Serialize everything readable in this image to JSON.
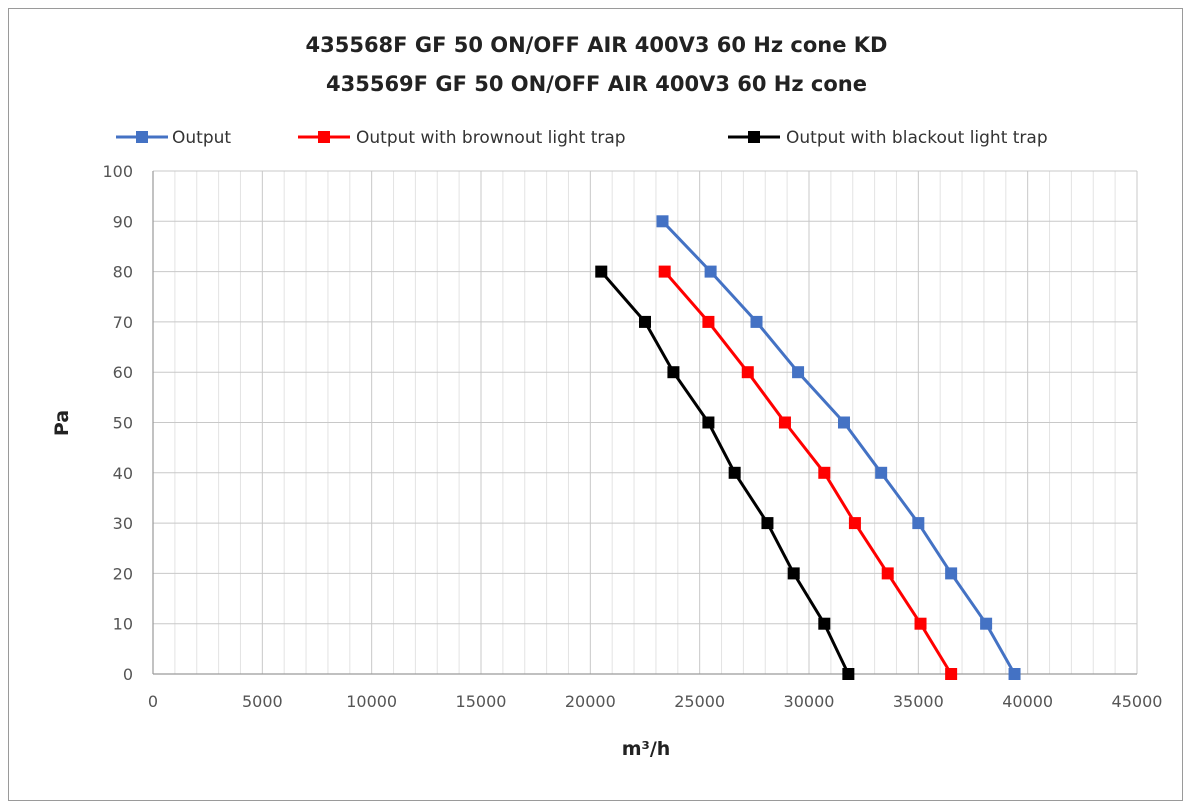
{
  "chart_data": {
    "type": "line",
    "title": "435568F GF 50 ON/OFF AIR 400V3 60 Hz cone KD",
    "subtitle": "435569F GF 50 ON/OFF AIR 400V3 60 Hz cone",
    "xlabel": "m³/h",
    "ylabel": "Pa",
    "xlim": [
      0,
      45000
    ],
    "ylim": [
      0,
      100
    ],
    "x_ticks": [
      "0",
      "5000",
      "10000",
      "15000",
      "20000",
      "25000",
      "30000",
      "35000",
      "40000",
      "45000"
    ],
    "y_ticks": [
      "0",
      "10",
      "20",
      "30",
      "40",
      "50",
      "60",
      "70",
      "80",
      "90",
      "100"
    ],
    "grid": true,
    "legend_position": "top",
    "series": [
      {
        "name": "Output",
        "color": "#4472c4",
        "x": [
          23300,
          25500,
          27600,
          29500,
          31600,
          33300,
          35000,
          36500,
          38100,
          39400
        ],
        "y": [
          90,
          80,
          70,
          60,
          50,
          40,
          30,
          20,
          10,
          0
        ]
      },
      {
        "name": "Output with brownout light trap",
        "color": "#ff0000",
        "x": [
          23400,
          25400,
          27200,
          28900,
          30700,
          32100,
          33600,
          35100,
          36500
        ],
        "y": [
          80,
          70,
          60,
          50,
          40,
          30,
          20,
          10,
          0
        ]
      },
      {
        "name": "Output with blackout light trap",
        "color": "#000000",
        "x": [
          20500,
          22500,
          23800,
          25400,
          26600,
          28100,
          29300,
          30700,
          31800
        ],
        "y": [
          80,
          70,
          60,
          50,
          40,
          30,
          20,
          10,
          0
        ]
      }
    ]
  }
}
